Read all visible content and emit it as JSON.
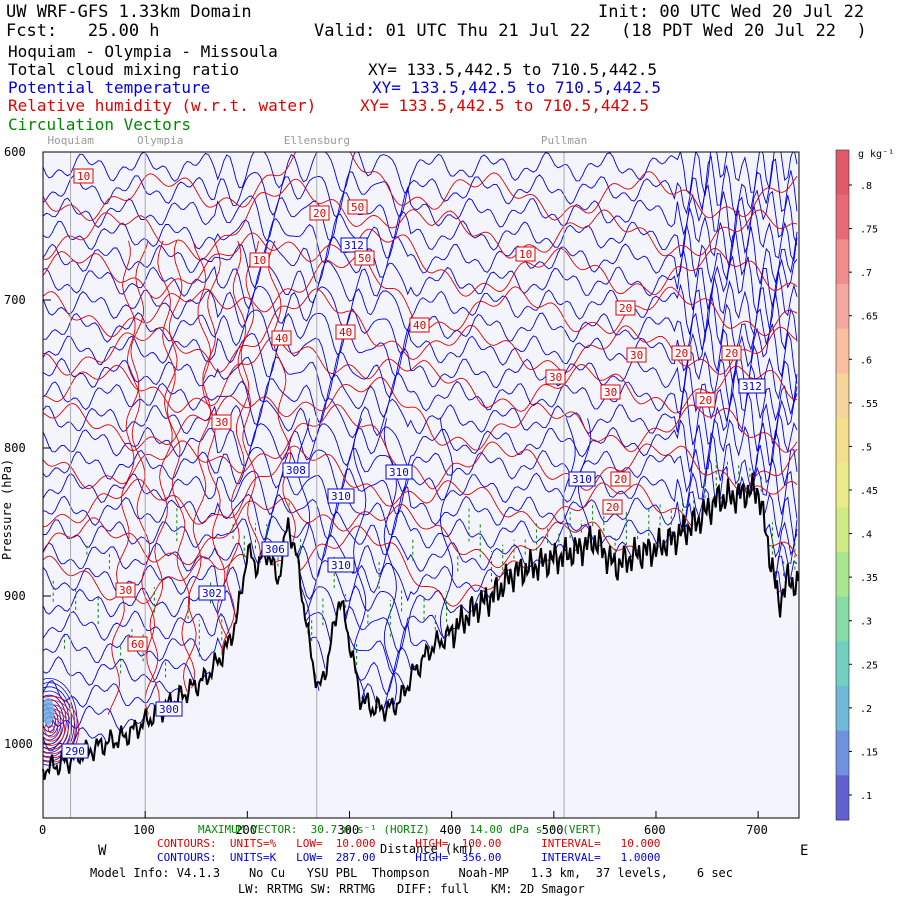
{
  "header": {
    "title": "UW WRF-GFS 1.33km Domain",
    "init": "Init: 00 UTC Wed 20 Jul 22",
    "fcst": "Fcst:   25.00 h",
    "valid": "Valid: 01 UTC Thu 21 Jul 22   (18 PDT Wed 20 Jul 22  )",
    "route": "Hoquiam - Olympia - Missoula"
  },
  "fields": [
    {
      "name": "Total cloud mixing ratio",
      "xy": "XY= 133.5,442.5 to 710.5,442.5",
      "color": "#000000"
    },
    {
      "name": "Potential temperature",
      "xy": "XY= 133.5,442.5 to 710.5,442.5",
      "color": "#0000e0"
    },
    {
      "name": "Relative humidity (w.r.t. water)",
      "xy": "XY= 133.5,442.5 to 710.5,442.5",
      "color": "#e00000"
    },
    {
      "name": "Circulation Vectors",
      "xy": "",
      "color": "#008800"
    }
  ],
  "locations": [
    {
      "name": "Hoquiam",
      "km": 27
    },
    {
      "name": "Olympia",
      "km": 100
    },
    {
      "name": "Ellensburg",
      "km": 268
    },
    {
      "name": "Pullman",
      "km": 510
    }
  ],
  "chart_data": {
    "type": "line",
    "title": "",
    "xlabel": "Distance (km)",
    "ylabel": "Pressure (hPa)",
    "xlim": [
      0,
      740
    ],
    "ylim": [
      1050,
      600
    ],
    "xticks": [
      0,
      100,
      200,
      300,
      400,
      500,
      600,
      700
    ],
    "yticks": [
      600,
      700,
      800,
      900,
      1000
    ],
    "ytick_labels": [
      "600",
      "700",
      "800",
      "900",
      "1000"
    ],
    "direction_labels": {
      "west": "W",
      "east": "E"
    },
    "terrain": {
      "name": "terrain",
      "x": [
        0,
        20,
        40,
        60,
        80,
        100,
        120,
        140,
        160,
        180,
        190,
        200,
        210,
        220,
        230,
        235,
        240,
        250,
        260,
        270,
        280,
        290,
        300,
        310,
        320,
        330,
        340,
        350,
        360,
        370,
        380,
        400,
        420,
        440,
        460,
        480,
        500,
        520,
        540,
        560,
        580,
        600,
        620,
        640,
        660,
        680,
        700,
        720,
        730,
        740
      ],
      "pressure": [
        1017,
        1013,
        1006,
        1000,
        995,
        985,
        975,
        965,
        955,
        935,
        915,
        870,
        880,
        870,
        890,
        870,
        850,
        880,
        930,
        965,
        940,
        900,
        930,
        968,
        975,
        976,
        976,
        970,
        955,
        945,
        935,
        925,
        910,
        900,
        885,
        880,
        875,
        870,
        862,
        880,
        872,
        868,
        860,
        850,
        835,
        832,
        828,
        905,
        888,
        895
      ]
    },
    "theta_contours": {
      "units": "K",
      "labels": [
        "300",
        "290",
        "302",
        "306",
        "308",
        "310",
        "310",
        "310",
        "310",
        "312",
        "312"
      ]
    },
    "rh_contours": {
      "units": "%",
      "labels": [
        "10",
        "10",
        "10",
        "20",
        "20",
        "20",
        "20",
        "20",
        "20",
        "20",
        "30",
        "30",
        "30",
        "30",
        "30",
        "40",
        "40",
        "40",
        "50",
        "50",
        "60"
      ]
    },
    "color_scale": {
      "label": "g kg⁻¹",
      "ticks": [
        ".1",
        ".15",
        ".2",
        ".25",
        ".3",
        ".35",
        ".4",
        ".45",
        ".5",
        ".55",
        ".6",
        ".65",
        ".7",
        ".75",
        ".8"
      ]
    }
  },
  "footer": {
    "max_vector": "MAXIMUM VECTOR:  30.7 m s⁻¹ (HORIZ)      14.00 dPa s⁻¹ (VERT)",
    "rh_contours": "CONTOURS:  UNITS=%   LOW=  10.000      HIGH=  100.00      INTERVAL=   10.000",
    "theta_contours": "CONTOURS:  UNITS=K   LOW=  287.00      HIGH=  356.00      INTERVAL=   1.0000",
    "model_info": "Model Info: V4.1.3    No Cu   YSU PBL  Thompson    Noah-MP   1.3 km,  37 levels,    6 sec",
    "physics": "LW: RRTMG SW: RRTMG   DIFF: full   KM: 2D Smagor"
  },
  "colors": {
    "theta": "#0000e0",
    "rh": "#e00000",
    "vectors": "#008800",
    "background": "#f4f4fc",
    "terrain": "#000000"
  }
}
